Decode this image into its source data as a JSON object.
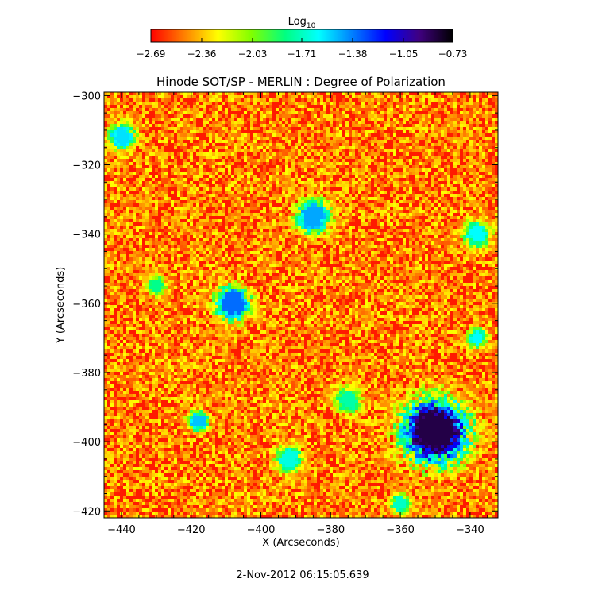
{
  "chart_data": {
    "type": "heatmap",
    "title": "Hinode SOT/SP - MERLIN : Degree of Polarization",
    "xlabel": "X (Arcseconds)",
    "ylabel": "Y (Arcseconds)",
    "xlim": [
      -445,
      -332
    ],
    "ylim": [
      -422,
      -299
    ],
    "x_ticks": [
      -440,
      -420,
      -400,
      -380,
      -360,
      -340
    ],
    "x_tick_labels": [
      "−440",
      "−420",
      "−400",
      "−380",
      "−360",
      "−340"
    ],
    "y_ticks": [
      -300,
      -320,
      -340,
      -360,
      -380,
      -400,
      -420
    ],
    "y_tick_labels": [
      "−300",
      "−320",
      "−340",
      "−360",
      "−380",
      "−400",
      "−420"
    ],
    "colorbar": {
      "label_base": "Log",
      "label_sub": "10",
      "range": [
        -2.69,
        -0.73
      ],
      "ticks": [
        -2.69,
        -2.36,
        -2.03,
        -1.71,
        -1.38,
        -1.05,
        -0.73
      ],
      "tick_labels": [
        "−2.69",
        "−2.36",
        "−2.03",
        "−1.71",
        "−1.38",
        "−1.05",
        "−0.73"
      ],
      "colormap": [
        "#ff0000",
        "#ff8000",
        "#ffff00",
        "#80ff00",
        "#00ff80",
        "#00ffff",
        "#0080ff",
        "#0000ff",
        "#400080",
        "#000000"
      ]
    },
    "features": [
      {
        "x": -350,
        "y": -397,
        "radius": 9,
        "log_value": -0.85
      },
      {
        "x": -408,
        "y": -360,
        "radius": 5,
        "log_value": -1.35
      },
      {
        "x": -385,
        "y": -335,
        "radius": 5,
        "log_value": -1.45
      },
      {
        "x": -440,
        "y": -312,
        "radius": 4,
        "log_value": -1.55
      },
      {
        "x": -418,
        "y": -394,
        "radius": 3,
        "log_value": -1.5
      },
      {
        "x": -338,
        "y": -340,
        "radius": 4,
        "log_value": -1.6
      },
      {
        "x": -392,
        "y": -405,
        "radius": 4,
        "log_value": -1.65
      },
      {
        "x": -338,
        "y": -370,
        "radius": 3,
        "log_value": -1.6
      },
      {
        "x": -375,
        "y": -388,
        "radius": 4,
        "log_value": -1.75
      },
      {
        "x": -360,
        "y": -418,
        "radius": 3,
        "log_value": -1.7
      },
      {
        "x": -430,
        "y": -355,
        "radius": 3,
        "log_value": -1.8
      }
    ],
    "background_log_value": -2.69
  },
  "footer": {
    "timestamp": "2-Nov-2012 06:15:05.639"
  }
}
